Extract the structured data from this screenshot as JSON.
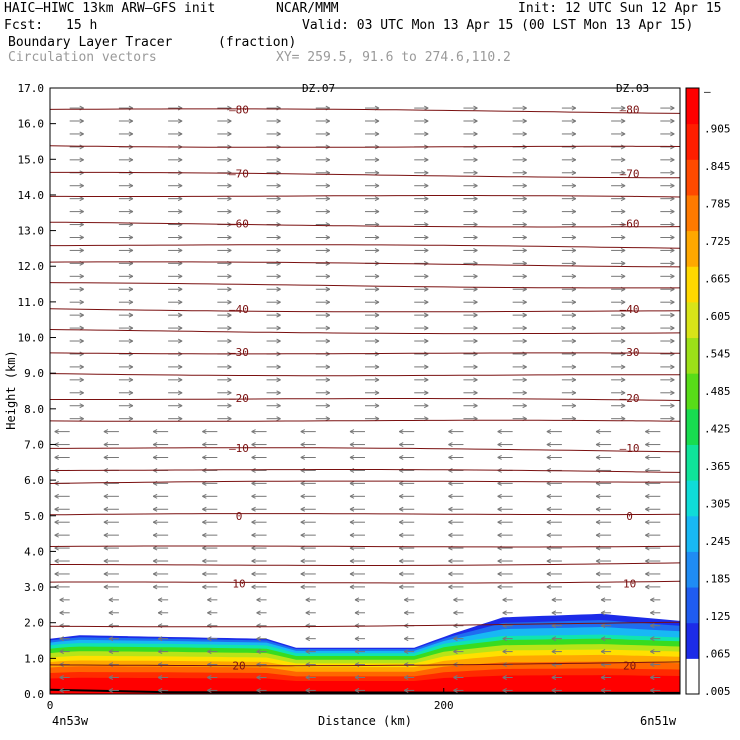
{
  "header": {
    "model": "HAIC–HIWC 13km ARW–GFS init",
    "org": "NCAR/MMM",
    "init": "Init: 12 UTC Sun 12 Apr 15",
    "fcst_label": "Fcst:",
    "fcst_value": "15 h",
    "valid": "Valid: 03 UTC Mon 13 Apr 15 (00 LST Mon 13 Apr 15)",
    "field": "Boundary Layer Tracer",
    "field_unit": "(fraction)",
    "vectors": "Circulation vectors",
    "xy": "XY= 259.5, 91.6 to 274.6,110.2"
  },
  "colors": {
    "isotherm": "#7a1010",
    "vector": "#777777",
    "colorbar": [
      "#ffffff",
      "#1c2be8",
      "#1f5cf0",
      "#1f8cf4",
      "#18b8f4",
      "#10dcd8",
      "#10e49a",
      "#18dc50",
      "#58dc18",
      "#9ce018",
      "#d8e418",
      "#ffd800",
      "#ffa800",
      "#ff7a00",
      "#ff4a00",
      "#ff1e00",
      "#ff0000"
    ]
  },
  "chart_data": {
    "type": "cross-section",
    "title": "Boundary Layer Tracer",
    "xlabel": "Distance (km)",
    "ylabel": "Height (km)",
    "xlim": [
      0,
      320
    ],
    "ylim": [
      0,
      17
    ],
    "x_ticks": [
      0,
      200
    ],
    "x_ticklabels": [
      "0",
      "200"
    ],
    "y_ticks": [
      0,
      1,
      2,
      3,
      4,
      5,
      6,
      7,
      8,
      9,
      10,
      11,
      12,
      13,
      14,
      15,
      16,
      17
    ],
    "y_ticklabels": [
      "0.0",
      "1.0",
      "2.0",
      "3.0",
      "4.0",
      "5.0",
      "6.0",
      "7.0",
      "8.0",
      "9.0",
      "10.0",
      "11.0",
      "12.0",
      "13.0",
      "14.0",
      "15.0",
      "16.0",
      "17.0"
    ],
    "endpoint_left": "4n53w",
    "endpoint_right": "6n51w",
    "top_labels": [
      "DZ.07",
      "DZ.03"
    ],
    "colorbar": {
      "labels": [
        "–",
        ".905",
        ".845",
        ".785",
        ".725",
        ".665",
        ".605",
        ".545",
        ".485",
        ".425",
        ".365",
        ".305",
        ".245",
        ".185",
        ".125",
        ".065",
        ".005"
      ],
      "min": 0.005,
      "max": 0.965
    },
    "isotherms": [
      {
        "label": "–80",
        "height": 16.4
      },
      {
        "label": "–70",
        "height": 14.6
      },
      {
        "label": "–60",
        "height": 13.2
      },
      {
        "label": "–40",
        "height": 10.8
      },
      {
        "label": "–30",
        "height": 9.6
      },
      {
        "label": "–20",
        "height": 8.3
      },
      {
        "label": "–10",
        "height": 6.9
      },
      {
        "label": "0",
        "height": 5.0
      },
      {
        "label": "10",
        "height": 3.1
      },
      {
        "label": "20",
        "height": 0.8
      }
    ],
    "isotherm_unlabeled_heights": [
      15.4,
      14.0,
      12.6,
      12.1,
      11.5,
      10.2,
      9.0,
      7.7,
      6.3,
      5.9,
      4.1,
      3.6,
      1.9
    ],
    "boundary_layer": {
      "top_x": [
        0,
        15,
        60,
        110,
        125,
        175,
        185,
        205,
        230,
        280,
        320
      ],
      "top_y": [
        1.55,
        1.65,
        1.6,
        1.55,
        1.3,
        1.3,
        1.3,
        1.7,
        2.15,
        2.25,
        2.05
      ]
    }
  }
}
